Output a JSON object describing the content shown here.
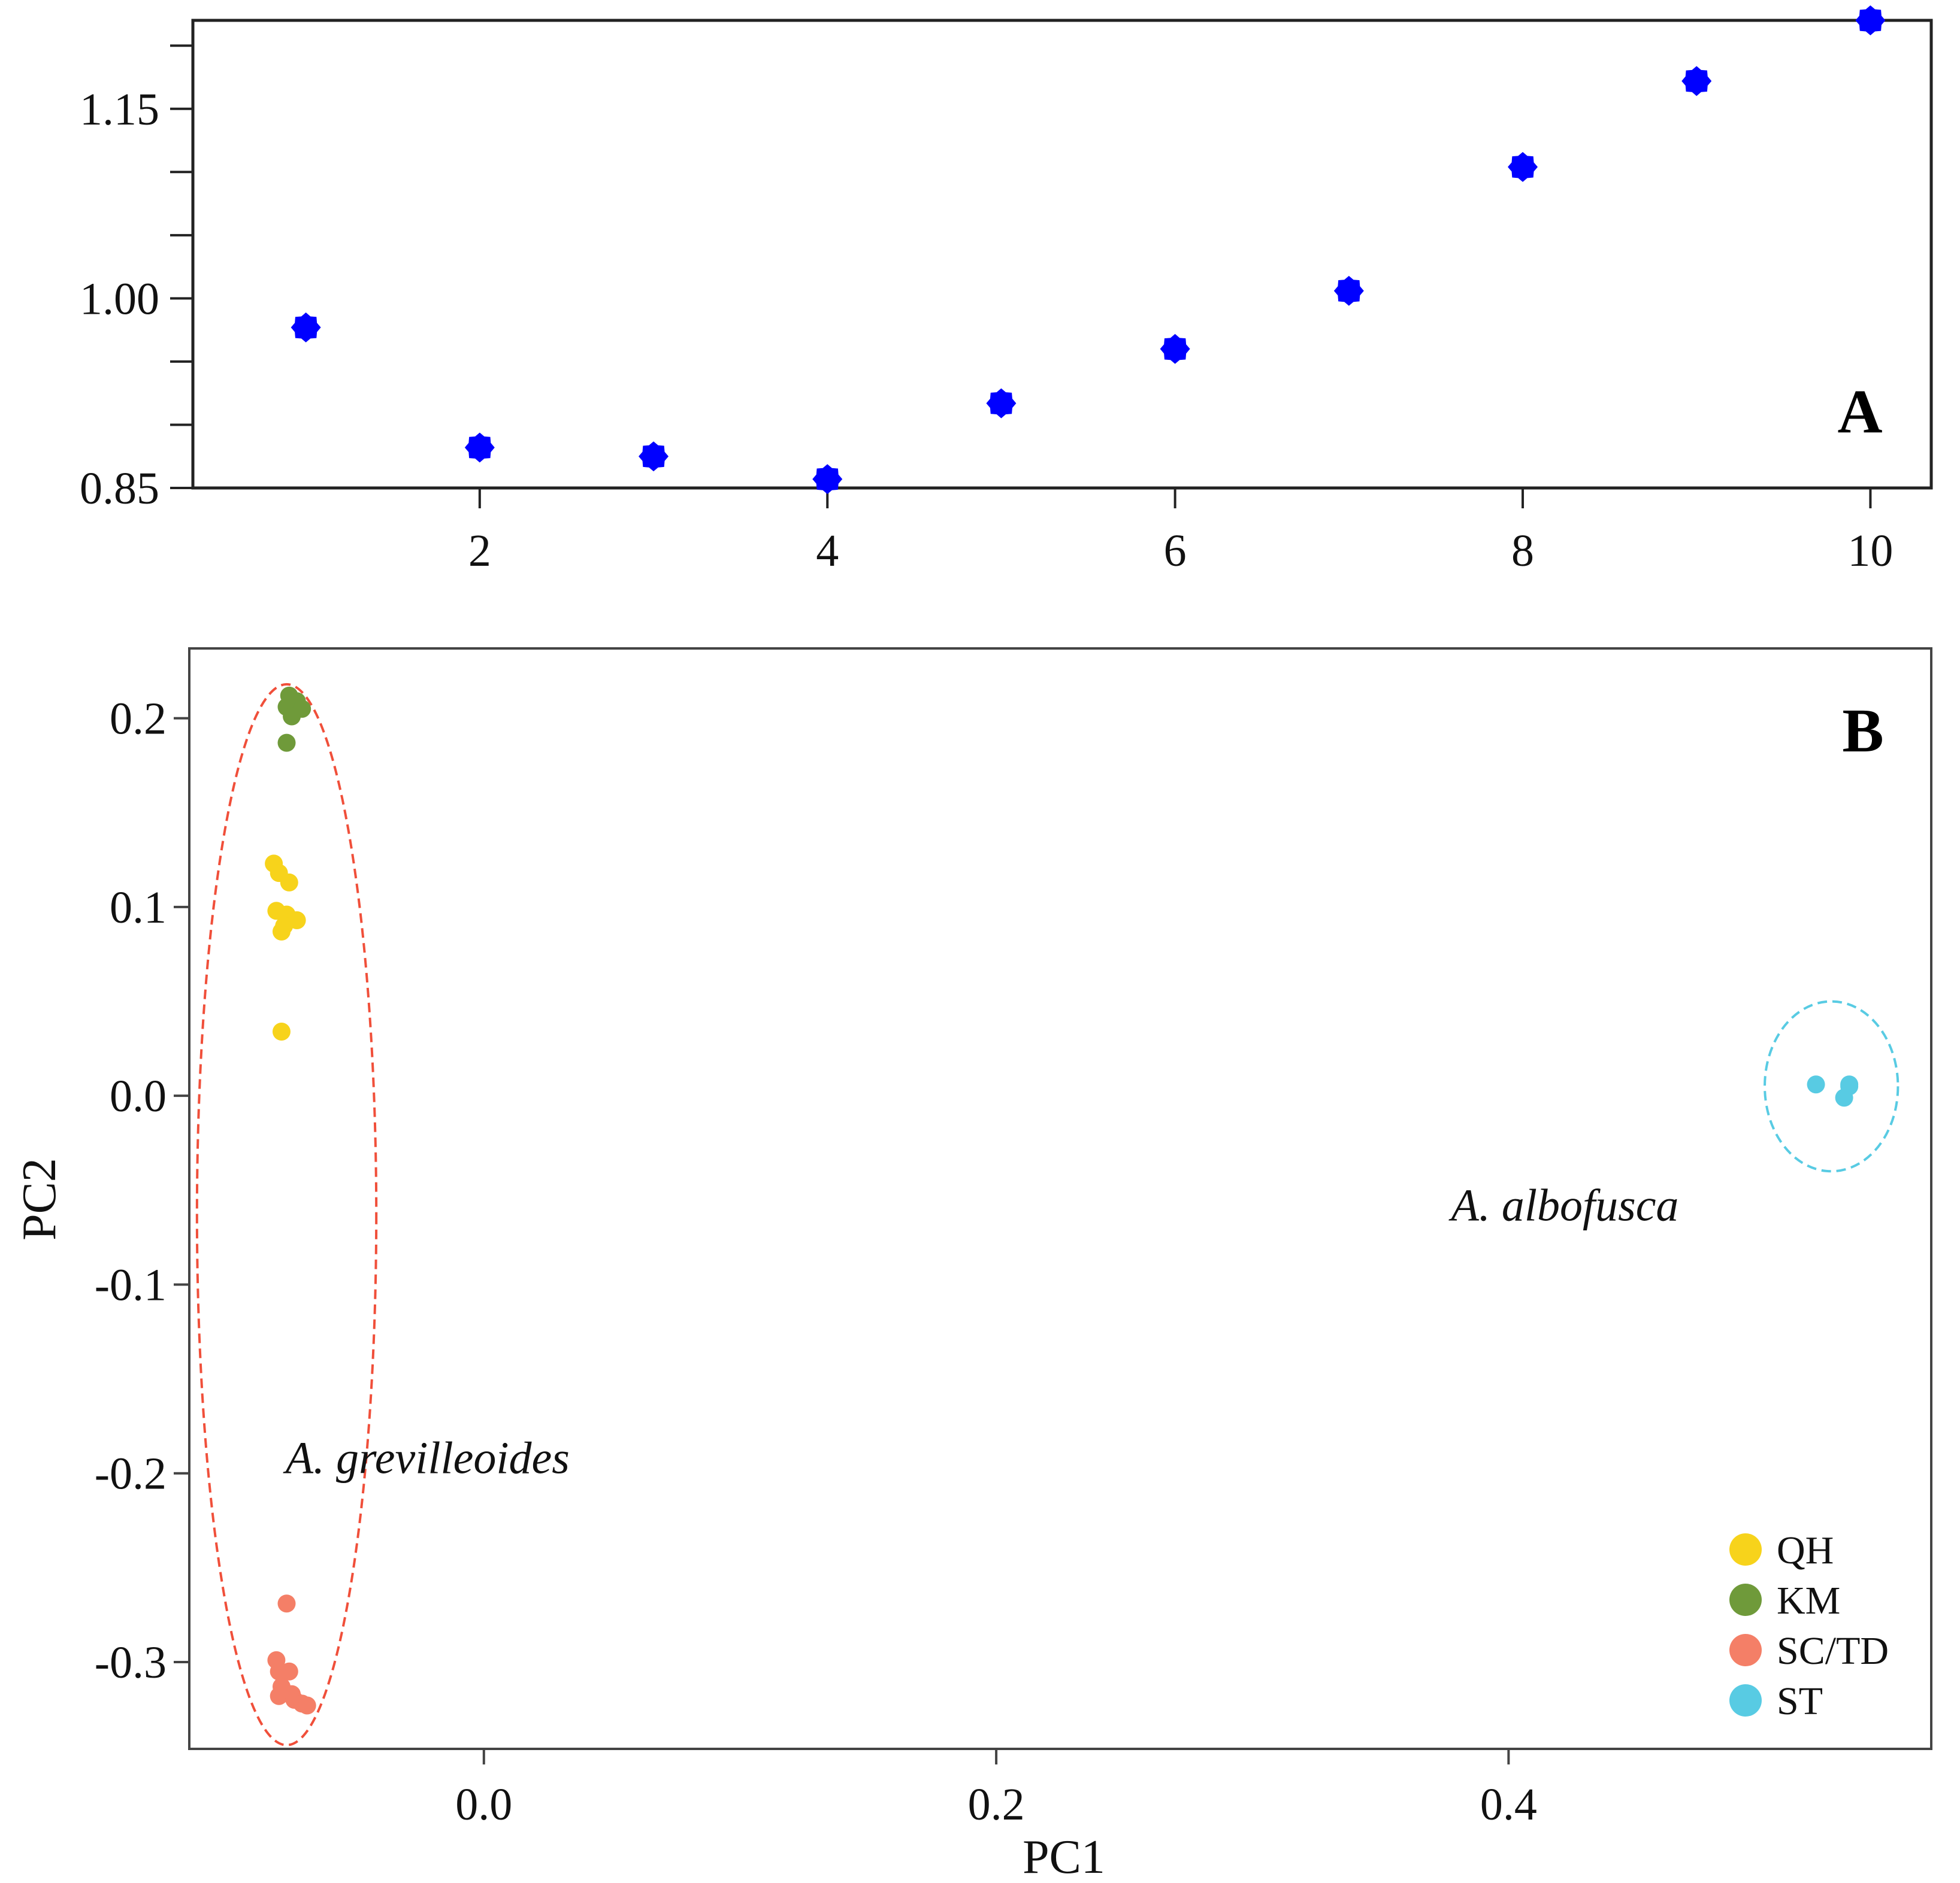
{
  "chart_data": [
    {
      "type": "scatter",
      "panel_label": "A",
      "title": "",
      "xlabel": "",
      "ylabel": "",
      "xlim": [
        0.35,
        10.35
      ],
      "ylim": [
        0.85,
        1.22
      ],
      "x_ticks": [
        2,
        4,
        6,
        8,
        10
      ],
      "x_tick_labels": [
        "2",
        "4",
        "6",
        "8",
        "10"
      ],
      "y_ticks": [
        0.85,
        0.9,
        0.95,
        1.0,
        1.05,
        1.1,
        1.15,
        1.2
      ],
      "y_tick_labels": [
        "0.85",
        "",
        "",
        "1.00",
        "",
        "",
        "1.15",
        ""
      ],
      "grid": false,
      "marker_color": "#0000ff",
      "series": [
        {
          "name": "points",
          "x": [
            1,
            2,
            3,
            4,
            5,
            6,
            7,
            8,
            9,
            10
          ],
          "y": [
            0.977,
            0.882,
            0.875,
            0.857,
            0.917,
            0.96,
            1.006,
            1.104,
            1.172,
            1.22
          ]
        }
      ]
    },
    {
      "type": "scatter",
      "panel_label": "B",
      "title": "",
      "xlabel": "PC1",
      "ylabel": "PC2",
      "xlim": [
        -0.115,
        0.565
      ],
      "ylim": [
        -0.346,
        0.237
      ],
      "x_ticks": [
        0.0,
        0.2,
        0.4
      ],
      "x_tick_labels": [
        "0.0",
        "0.2",
        "0.4"
      ],
      "y_ticks": [
        -0.3,
        -0.2,
        -0.1,
        0.0,
        0.1,
        0.2
      ],
      "y_tick_labels": [
        "-0.3",
        "-0.2",
        "-0.1",
        "0.0",
        "0.1",
        "0.2"
      ],
      "grid": false,
      "legend_position": "bottom-right",
      "series": [
        {
          "name": "QH",
          "color": "#f7d31b",
          "points": [
            [
              -0.082,
              0.123
            ],
            [
              -0.08,
              0.118
            ],
            [
              -0.076,
              0.113
            ],
            [
              -0.081,
              0.098
            ],
            [
              -0.077,
              0.096
            ],
            [
              -0.073,
              0.093
            ],
            [
              -0.078,
              0.09
            ],
            [
              -0.079,
              0.087
            ],
            [
              -0.079,
              0.034
            ]
          ]
        },
        {
          "name": "KM",
          "color": "#6f9a3a",
          "points": [
            [
              -0.076,
              0.212
            ],
            [
              -0.073,
              0.209
            ],
            [
              -0.077,
              0.206
            ],
            [
              -0.071,
              0.205
            ],
            [
              -0.075,
              0.201
            ],
            [
              -0.077,
              0.187
            ]
          ]
        },
        {
          "name": "SC/TD",
          "color": "#f47f67",
          "points": [
            [
              -0.077,
              -0.269
            ],
            [
              -0.081,
              -0.299
            ],
            [
              -0.08,
              -0.305
            ],
            [
              -0.076,
              -0.305
            ],
            [
              -0.079,
              -0.313
            ],
            [
              -0.075,
              -0.317
            ],
            [
              -0.08,
              -0.318
            ],
            [
              -0.074,
              -0.32
            ],
            [
              -0.071,
              -0.322
            ],
            [
              -0.069,
              -0.323
            ]
          ]
        },
        {
          "name": "ST",
          "color": "#58cbe3",
          "points": [
            [
              0.52,
              0.006
            ],
            [
              0.533,
              0.006
            ],
            [
              0.531,
              -0.001
            ],
            [
              0.533,
              0.005
            ]
          ]
        }
      ],
      "annotations": [
        {
          "text": "A. grevilleoides",
          "x": -0.022,
          "y": -0.2,
          "ellipse_color": "#f04f3a",
          "ellipse": {
            "cx": -0.077,
            "cy": -0.063,
            "rx": 0.035,
            "ry": 0.281
          }
        },
        {
          "text": "A. albofusca",
          "x": 0.422,
          "y": -0.066,
          "ellipse_color": "#58cbe3",
          "ellipse": {
            "cx": 0.526,
            "cy": 0.005,
            "rx": 0.026,
            "ry": 0.045
          }
        }
      ]
    }
  ]
}
